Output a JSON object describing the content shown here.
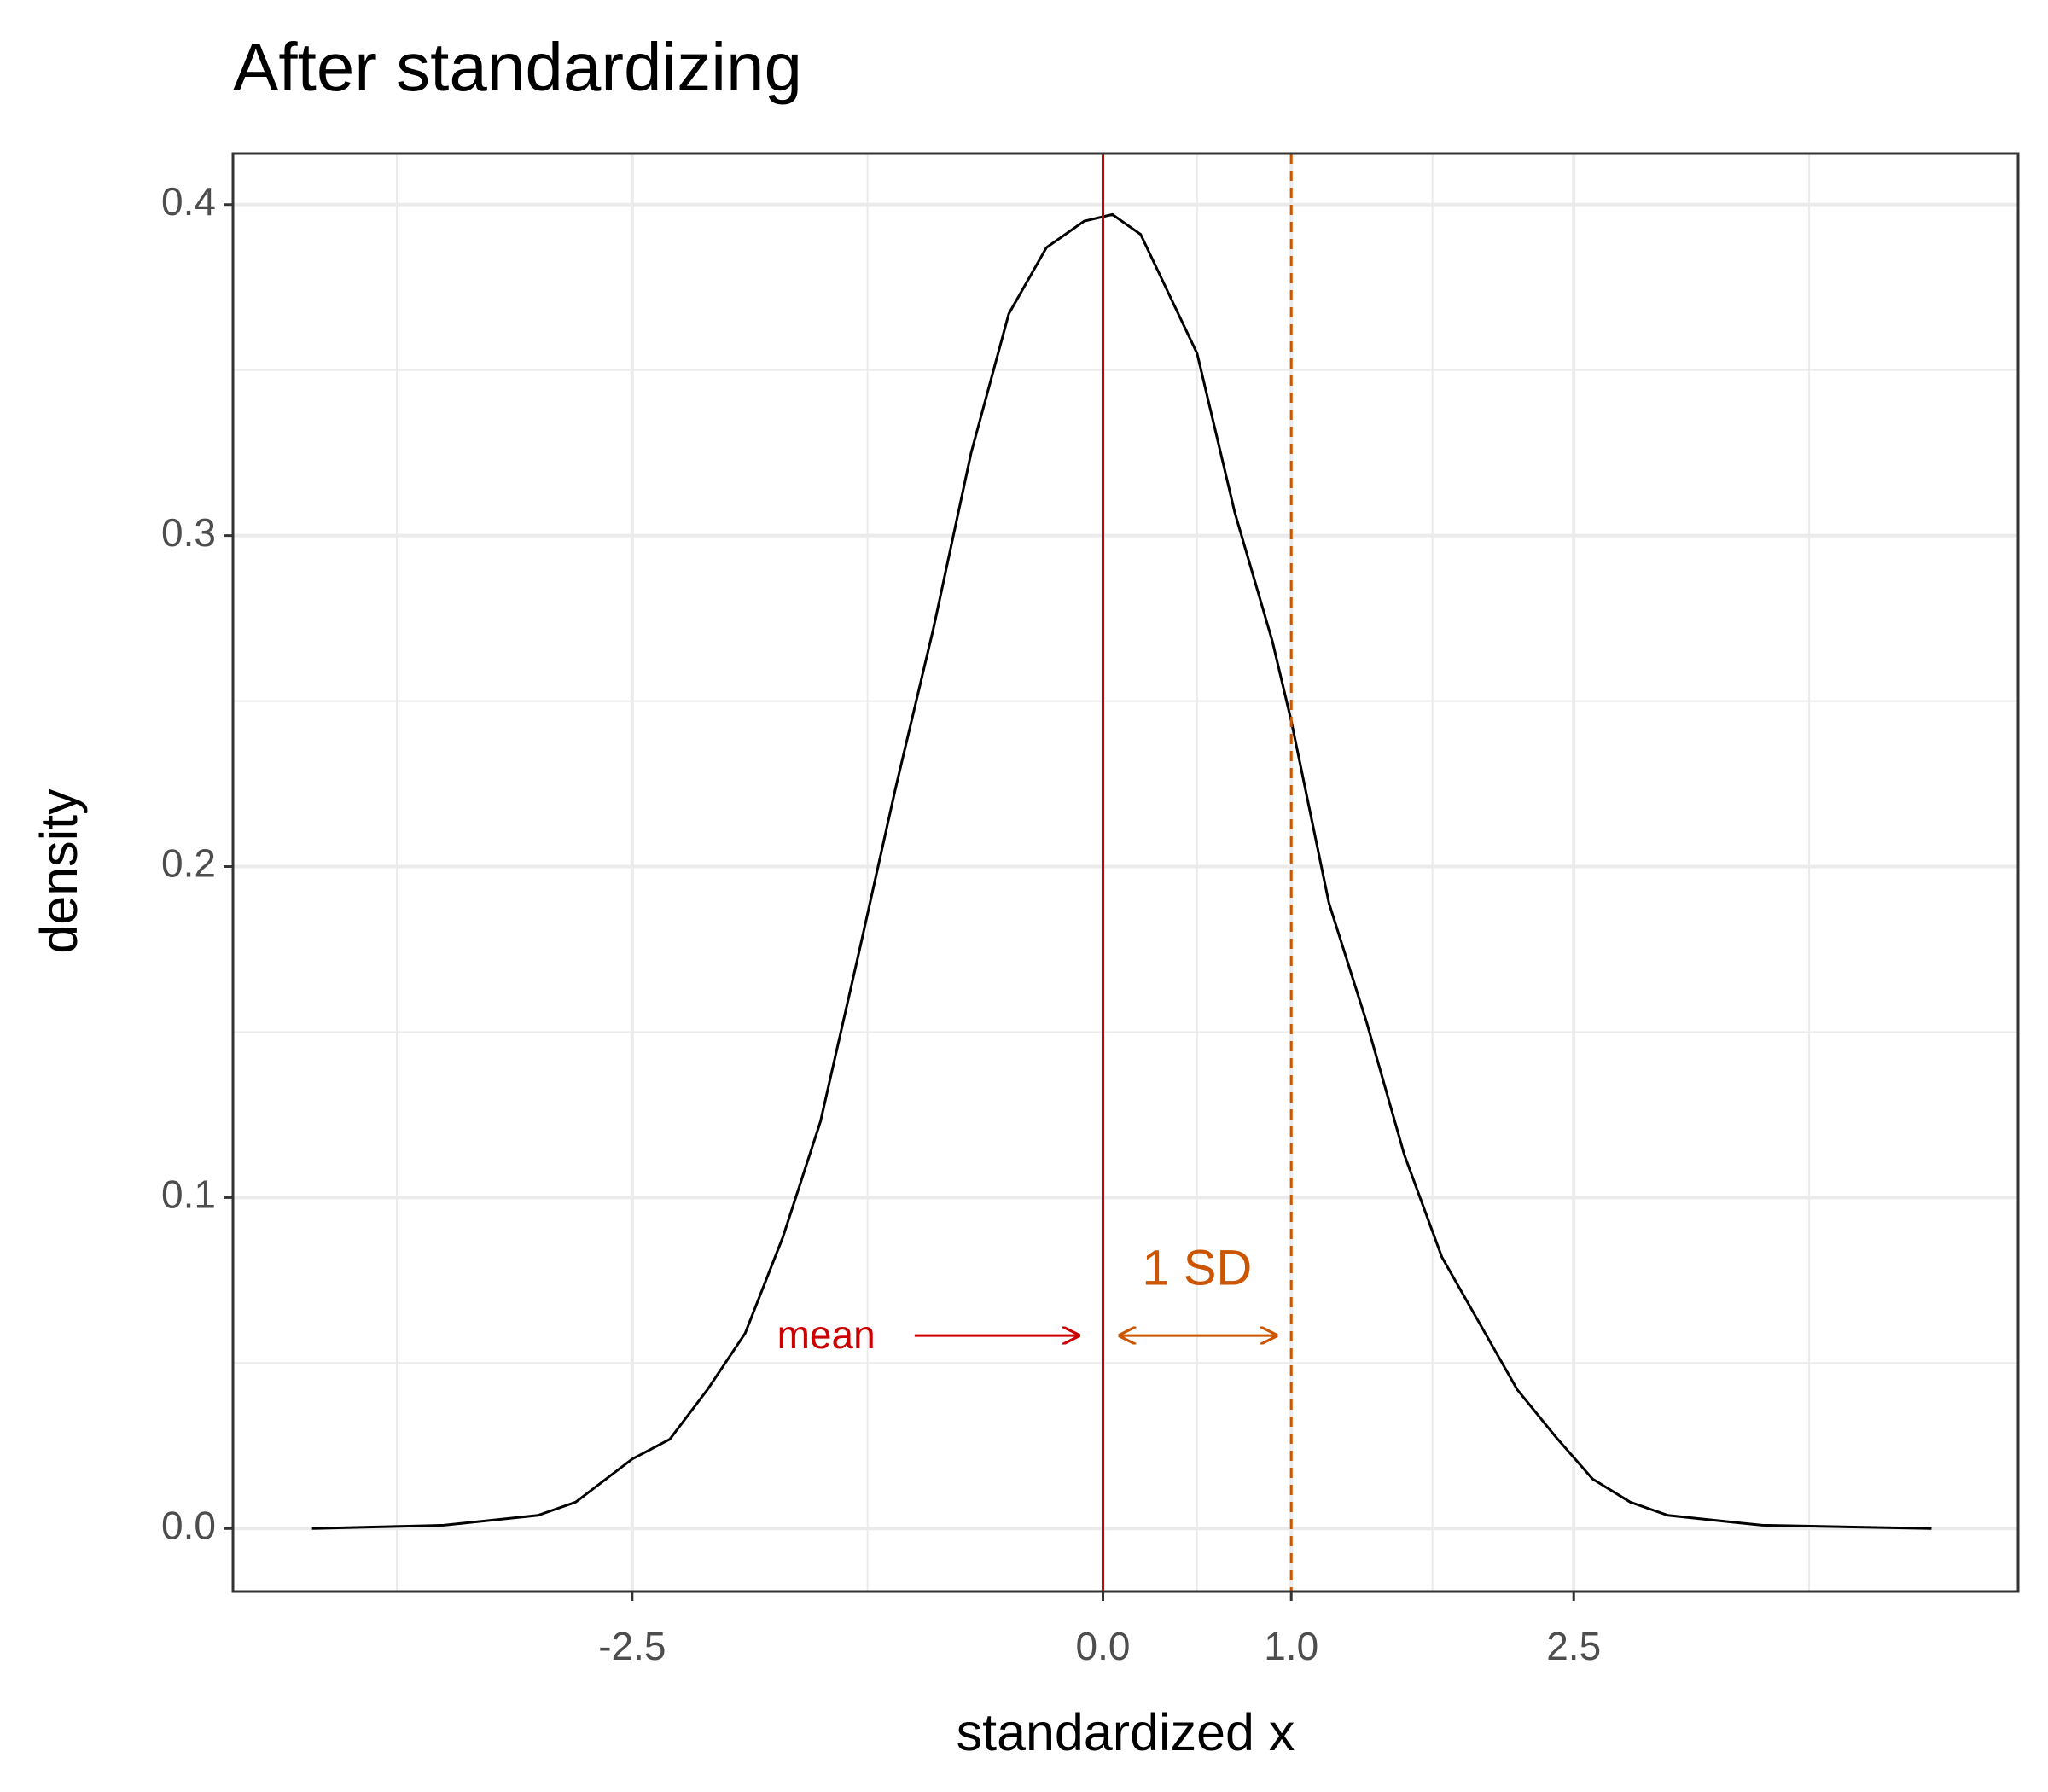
{
  "chart_data": {
    "type": "line",
    "title": "After standardizing",
    "x_label": "standardized x",
    "y_label": "density",
    "x": [
      -4.2,
      -3.5,
      -3.0,
      -2.8,
      -2.5,
      -2.3,
      -2.1,
      -1.9,
      -1.7,
      -1.5,
      -1.3,
      -1.1,
      -0.9,
      -0.7,
      -0.5,
      -0.3,
      -0.1,
      0.05,
      0.2,
      0.4,
      0.5,
      0.7,
      0.9,
      1.0,
      1.2,
      1.4,
      1.6,
      1.8,
      2.0,
      2.2,
      2.4,
      2.6,
      2.8,
      3.0,
      3.5,
      4.4
    ],
    "series": [
      {
        "name": "density",
        "color": "#000000",
        "values": [
          0.0,
          0.001,
          0.004,
          0.008,
          0.021,
          0.027,
          0.042,
          0.059,
          0.088,
          0.123,
          0.173,
          0.224,
          0.272,
          0.325,
          0.367,
          0.387,
          0.395,
          0.397,
          0.391,
          0.367,
          0.355,
          0.307,
          0.268,
          0.244,
          0.189,
          0.153,
          0.113,
          0.082,
          0.062,
          0.042,
          0.028,
          0.015,
          0.008,
          0.004,
          0.001,
          0.0
        ]
      }
    ],
    "xlim": [
      -4.62,
      4.86
    ],
    "ylim": [
      -0.019,
      0.4154
    ],
    "xticks": [
      -2.5,
      {
        "value": 0,
        "label": "0.0"
      },
      {
        "value": 1,
        "label": "1.0"
      },
      2.5
    ],
    "yticks": [
      {
        "value": 0,
        "label": "0.0"
      },
      0.1,
      0.2,
      0.3,
      0.4
    ],
    "x_minor_grid": [
      -3.75,
      -1.25,
      0.5,
      1.75,
      3.75
    ],
    "y_minor_grid": [
      0.05,
      0.15,
      0.25,
      0.35
    ],
    "grid": true,
    "mean_line": {
      "x": 0,
      "color": "#cc0000",
      "label": "mean"
    },
    "sd_line": {
      "x": 1,
      "color": "#cc5500",
      "dashed": true,
      "label": "1 SD"
    }
  }
}
